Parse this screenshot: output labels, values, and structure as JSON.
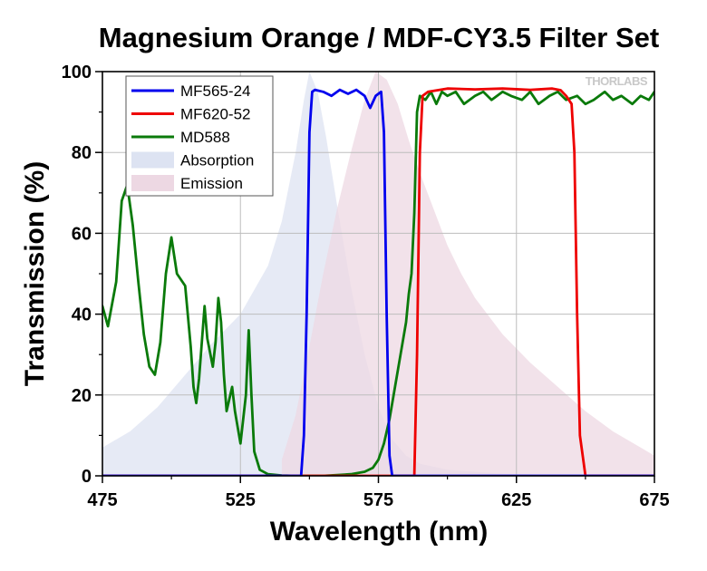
{
  "chart_data": {
    "type": "line",
    "title": "Magnesium Orange / MDF-CY3.5 Filter Set",
    "xlabel": "Wavelength (nm)",
    "ylabel": "Transmission (%)",
    "xlim": [
      475,
      675
    ],
    "ylim": [
      0,
      100
    ],
    "x_ticks": [
      475,
      525,
      575,
      625,
      675
    ],
    "y_ticks": [
      0,
      20,
      40,
      60,
      80,
      100
    ],
    "grid": true,
    "legend_position": "top-left",
    "watermark": "THORLABS",
    "series": [
      {
        "name": "Absorption",
        "kind": "area",
        "color": "#dde3f2",
        "x": [
          475,
          485,
          495,
          505,
          515,
          525,
          535,
          540,
          545,
          548,
          550,
          553,
          556,
          560,
          565,
          570,
          575,
          580,
          585,
          590,
          600,
          620,
          650,
          675
        ],
        "y": [
          7,
          11,
          17,
          25,
          33,
          40,
          52,
          63,
          80,
          93,
          100,
          95,
          84,
          67,
          47,
          30,
          17,
          9,
          5,
          3,
          1.5,
          0.5,
          0.2,
          0
        ]
      },
      {
        "name": "Emission",
        "kind": "area",
        "color": "#edd8e3",
        "x": [
          540,
          545,
          550,
          555,
          560,
          565,
          570,
          574,
          578,
          582,
          586,
          590,
          595,
          600,
          605,
          610,
          620,
          630,
          640,
          650,
          660,
          670,
          675
        ],
        "y": [
          4,
          15,
          32,
          50,
          66,
          80,
          93,
          100,
          98,
          92,
          83,
          75,
          66,
          57,
          50,
          44,
          35,
          28,
          22,
          16,
          11,
          7,
          5
        ]
      },
      {
        "name": "MF565-24",
        "kind": "line",
        "color": "#0000ee",
        "x": [
          475,
          547,
          548,
          549,
          550,
          551,
          552,
          555,
          558,
          561,
          564,
          567,
          570,
          572,
          574,
          576,
          577,
          578,
          579,
          580,
          675
        ],
        "y": [
          0,
          0,
          10,
          40,
          85,
          95,
          95.5,
          95,
          94,
          95.5,
          94.5,
          95.5,
          94,
          91,
          94,
          95,
          85,
          40,
          5,
          0,
          0
        ]
      },
      {
        "name": "MF620-52",
        "kind": "line",
        "color": "#ee0000",
        "x": [
          475,
          588,
          589,
          590,
          591,
          593,
          600,
          610,
          620,
          630,
          638,
          641,
          643,
          645,
          646,
          647,
          648,
          650,
          675
        ],
        "y": [
          0,
          0,
          30,
          80,
          94,
          95,
          95.8,
          95.6,
          95.8,
          95.5,
          95.8,
          95.4,
          94,
          92,
          80,
          40,
          10,
          0,
          0
        ]
      },
      {
        "name": "MD588",
        "kind": "line",
        "color": "#0a7a0a",
        "x": [
          475,
          477,
          480,
          482,
          484,
          486,
          488,
          490,
          492,
          494,
          496,
          498,
          500,
          502,
          505,
          507,
          508,
          509,
          510,
          512,
          513,
          515,
          516,
          517,
          518,
          519,
          520,
          522,
          523,
          525,
          527,
          528,
          529,
          530,
          532,
          535,
          540,
          545,
          550,
          555,
          560,
          565,
          570,
          573,
          575,
          577,
          579,
          581,
          583,
          585,
          586,
          587,
          588,
          589,
          590,
          592,
          594,
          596,
          598,
          600,
          603,
          606,
          610,
          613,
          616,
          620,
          623,
          627,
          630,
          633,
          637,
          640,
          643,
          647,
          650,
          653,
          657,
          660,
          663,
          667,
          670,
          673,
          675
        ],
        "y": [
          42,
          37,
          48,
          68,
          72,
          62,
          48,
          35,
          27,
          25,
          33,
          50,
          59,
          50,
          47,
          32,
          22,
          18,
          24,
          42,
          34,
          27,
          33,
          44,
          38,
          25,
          16,
          22,
          16,
          8,
          20,
          36,
          20,
          6,
          1.5,
          0.4,
          0.1,
          0,
          0,
          0,
          0.2,
          0.4,
          1,
          2,
          4,
          8,
          14,
          22,
          30,
          38,
          45,
          50,
          65,
          90,
          94,
          93,
          95,
          92,
          95,
          94,
          95,
          92,
          94,
          95,
          93,
          95,
          94,
          93,
          95,
          92,
          94,
          95,
          93,
          94,
          92,
          93,
          95,
          93,
          94,
          92,
          94,
          93,
          95
        ]
      }
    ]
  }
}
